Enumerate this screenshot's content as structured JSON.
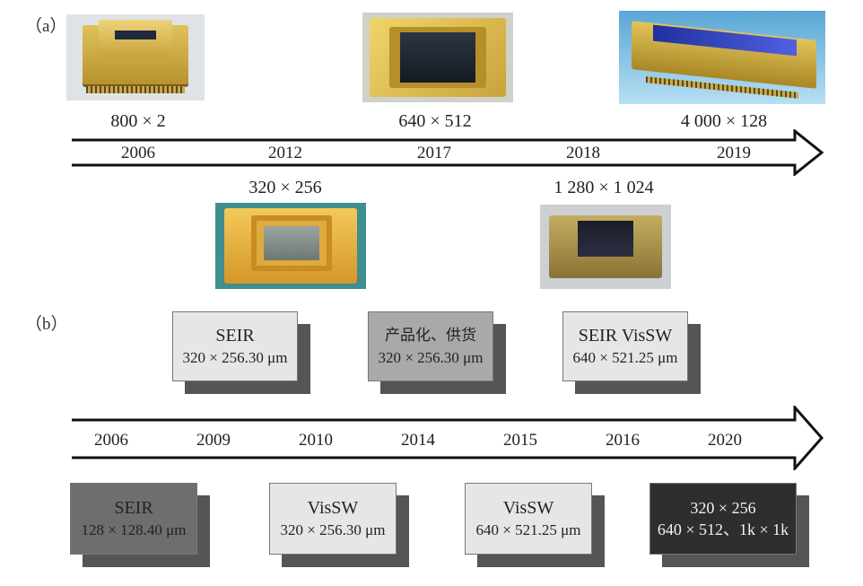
{
  "panel_a": {
    "label": "（a）",
    "upper": [
      {
        "dims": "800 × 2",
        "year": "2006"
      },
      {
        "dims": "640 × 512",
        "year": "2017"
      },
      {
        "dims": "4 000 × 128",
        "year": "2019"
      }
    ],
    "lower": [
      {
        "dims": "320 × 256",
        "year": "2012"
      },
      {
        "dims": "1 280 × 1 024",
        "year": "2018"
      }
    ]
  },
  "panel_b": {
    "label": "（b）",
    "years": [
      "2006",
      "2009",
      "2010",
      "2014",
      "2015",
      "2016",
      "2020"
    ],
    "top_boxes": [
      {
        "line1": "SEIR",
        "line2": "320 × 256.30 μm"
      },
      {
        "line1": "产品化、供货",
        "line2": "320 × 256.30 μm"
      },
      {
        "line1": "SEIR VisSW",
        "line2": "640 × 521.25 μm"
      }
    ],
    "bottom_boxes": [
      {
        "line1": "SEIR",
        "line2": "128 × 128.40 μm"
      },
      {
        "line1": "VisSW",
        "line2": "320 × 256.30 μm"
      },
      {
        "line1": "VisSW",
        "line2": "640 × 521.25 μm"
      },
      {
        "line1": "320 × 256",
        "line2": "640 × 512、1k × 1k"
      }
    ]
  },
  "colors": {
    "gold": "#c9a33c",
    "arrow": "#111111",
    "box_light": "#e6e6e6",
    "box_mid": "#a9a9a9",
    "box_dark": "#6e6e6e",
    "box_black": "#2e2e2e"
  }
}
